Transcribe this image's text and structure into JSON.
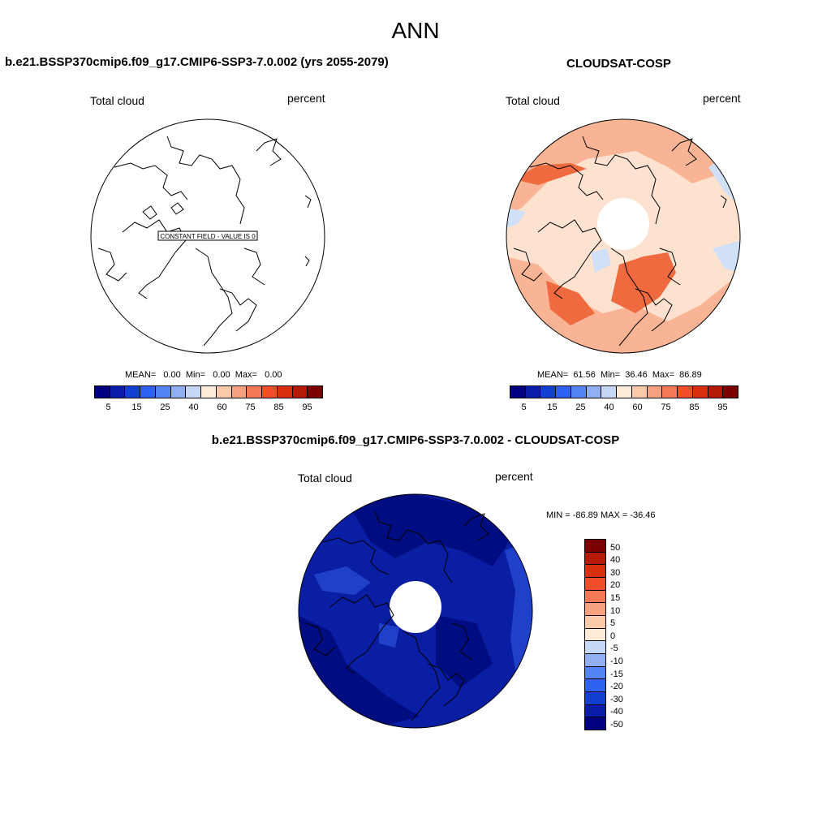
{
  "header": {
    "title": "ANN"
  },
  "panels": {
    "test": {
      "title": "b.e21.BSSP370cmip6.f09_g17.CMIP6-SSP3-7.0.002 (yrs 2055-2079)",
      "variable": "Total cloud",
      "units": "percent",
      "constant_label": "CONSTANT FIELD - VALUE IS 0",
      "stats": "MEAN=   0.00  Min=   0.00  Max=   0.00"
    },
    "obs": {
      "title": "CLOUDSAT-COSP",
      "variable": "Total cloud",
      "units": "percent",
      "stats": "MEAN=  61.56  Min=  36.46  Max=  86.89"
    },
    "diff": {
      "title": "b.e21.BSSP370cmip6.f09_g17.CMIP6-SSP3-7.0.002 - CLOUDSAT-COSP",
      "variable": "Total cloud",
      "units": "percent",
      "minmax": "MIN = -86.89 MAX = -36.46"
    }
  },
  "colorbar_abs": {
    "colors": [
      "#000080",
      "#0a1da8",
      "#1340d0",
      "#2d63f0",
      "#5585f5",
      "#90b0f3",
      "#c5d8f8",
      "#fdebd8",
      "#fbcaaa",
      "#f7a17e",
      "#f47a55",
      "#f04d28",
      "#d8300f",
      "#b51a08",
      "#7a0000"
    ],
    "ticks": [
      "5",
      "15",
      "25",
      "40",
      "60",
      "75",
      "85",
      "95"
    ]
  },
  "colorbar_diff": {
    "colors": [
      "#7a0000",
      "#b51a08",
      "#d8300f",
      "#f04d28",
      "#f47a55",
      "#f7a17e",
      "#fbcaaa",
      "#fdebd8",
      "#c5d8f8",
      "#90b0f3",
      "#5585f5",
      "#2d63f0",
      "#1340d0",
      "#0a1da8",
      "#000080"
    ],
    "ticks": [
      "50",
      "40",
      "30",
      "20",
      "15",
      "10",
      "5",
      "0",
      "-5",
      "-10",
      "-15",
      "-20",
      "-30",
      "-40",
      "-50"
    ]
  },
  "colors": {
    "obs_base": "#fde3cf",
    "obs_mid": "#f8b494",
    "obs_high": "#ef6a3f",
    "obs_low": "#cfe0f7",
    "diff_base": "#0a1ea3",
    "diff_deep": "#000d80",
    "diff_light": "#1f40c8"
  }
}
